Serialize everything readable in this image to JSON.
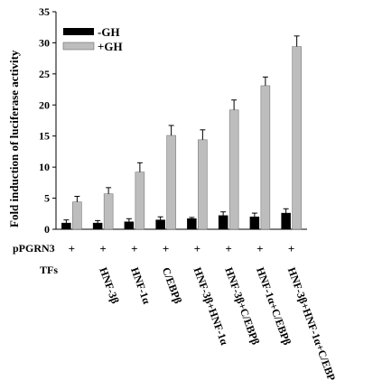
{
  "chart_data": {
    "type": "bar",
    "ylabel": "Fold induction of luciferase activity",
    "ylim": [
      0,
      35
    ],
    "yticks": [
      0,
      5,
      10,
      15,
      20,
      25,
      30,
      35
    ],
    "categories": [
      "",
      "HNF-3β",
      "HNF-1α",
      "C/EBPβ",
      "HNF-3β+HNF-1α",
      "HNF-3β+C/EBPβ",
      "HNF-1α+C/EBPβ",
      "HNF-3β+HNF-1α+C/EBPβ"
    ],
    "series": [
      {
        "name": "-GH",
        "color": "#000000",
        "values": [
          1.0,
          1.0,
          1.2,
          1.5,
          1.7,
          2.2,
          2.0,
          2.6
        ],
        "errors": [
          0.5,
          0.4,
          0.5,
          0.5,
          0.2,
          0.6,
          0.6,
          0.7
        ]
      },
      {
        "name": "+GH",
        "color": "#bdbdbd",
        "values": [
          4.4,
          5.7,
          9.2,
          15.1,
          14.4,
          19.2,
          23.1,
          29.4
        ],
        "errors": [
          0.9,
          1.0,
          1.5,
          1.6,
          1.6,
          1.6,
          1.4,
          1.7
        ]
      }
    ],
    "legend_position": "top-left",
    "rows": [
      {
        "label": "pPGRN3",
        "marks": [
          "+",
          "+",
          "+",
          "+",
          "+",
          "+",
          "+",
          "+"
        ]
      },
      {
        "label": "TFs",
        "marks": []
      }
    ]
  }
}
